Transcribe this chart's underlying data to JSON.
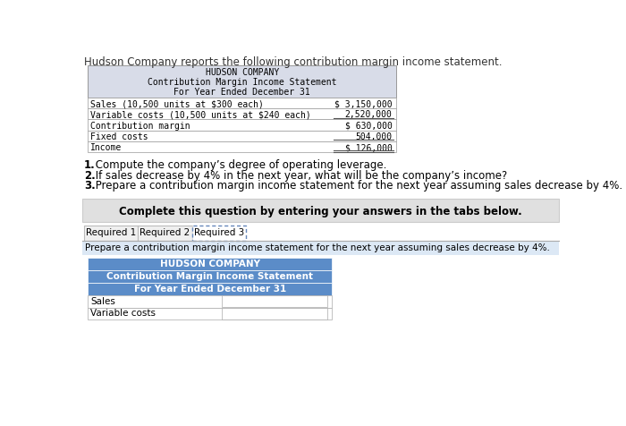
{
  "intro_text": "Hudson Company reports the following contribution margin income statement.",
  "top_table": {
    "header_lines": [
      "HUDSON COMPANY",
      "Contribution Margin Income Statement",
      "For Year Ended December 31"
    ],
    "rows": [
      {
        "label": "Sales (10,500 units at $300 each)",
        "value": "$ 3,150,000"
      },
      {
        "label": "Variable costs (10,500 units at $240 each)",
        "value": "2,520,000"
      },
      {
        "label": "Contribution margin",
        "value": "$ 630,000"
      },
      {
        "label": "Fixed costs",
        "value": "504,000"
      },
      {
        "label": "Income",
        "value": "$ 126,000"
      }
    ],
    "underline_rows": [
      1,
      3
    ],
    "double_underline_row": 4,
    "bg_header": "#d8dce8",
    "border_color": "#999999"
  },
  "questions": [
    {
      "bold": "1.",
      "text": " Compute the company’s degree of operating leverage."
    },
    {
      "bold": "2.",
      "text": " If sales decrease by 4% in the next year, what will be the company’s income?"
    },
    {
      "bold": "3.",
      "text": " Prepare a contribution margin income statement for the next year assuming sales decrease by 4%."
    }
  ],
  "instruction_box": {
    "text": "Complete this question by entering your answers in the tabs below.",
    "bg": "#e0e0e0",
    "border": "#cccccc"
  },
  "tabs": [
    {
      "label": "Required 1",
      "active": false
    },
    {
      "label": "Required 2",
      "active": false
    },
    {
      "label": "Required 3",
      "active": true
    }
  ],
  "tab_active_border": "#6688bb",
  "bottom_instruction": "Prepare a contribution margin income statement for the next year assuming sales decrease by 4%.",
  "bottom_instruction_bg": "#dce8f5",
  "bottom_table": {
    "header_lines": [
      "HUDSON COMPANY",
      "Contribution Margin Income Statement",
      "For Year Ended December 31"
    ],
    "rows": [
      {
        "label": "Sales",
        "value": ""
      },
      {
        "label": "Variable costs",
        "value": ""
      }
    ],
    "header_bg": "#5b8cc8",
    "header_text_color": "#ffffff",
    "border_color": "#aaaaaa"
  }
}
